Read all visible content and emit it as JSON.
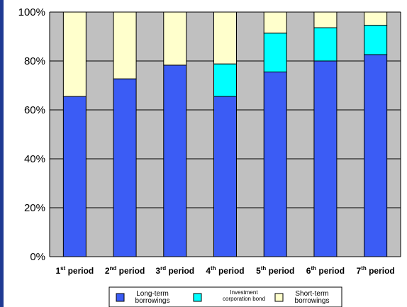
{
  "chart_data": {
    "type": "bar",
    "stacked": true,
    "categories": [
      {
        "num": "1",
        "sup": "st",
        "word": "period"
      },
      {
        "num": "2",
        "sup": "nd",
        "word": "period"
      },
      {
        "num": "3",
        "sup": "rd",
        "word": "period"
      },
      {
        "num": "4",
        "sup": "th",
        "word": "period"
      },
      {
        "num": "5",
        "sup": "th",
        "word": "period"
      },
      {
        "num": "6",
        "sup": "th",
        "word": "period"
      },
      {
        "num": "7",
        "sup": "th",
        "word": "period"
      }
    ],
    "series": [
      {
        "name_lines": [
          "Long-term",
          "borrowings"
        ],
        "color": "#3b5cf5",
        "values": [
          65.5,
          72.7,
          78.3,
          65.5,
          75.5,
          80.0,
          82.6
        ]
      },
      {
        "name_lines": [
          "Investment",
          "corporation bond"
        ],
        "color": "#00ffff",
        "values": [
          0,
          0,
          0,
          13.3,
          15.9,
          13.6,
          12.0
        ]
      },
      {
        "name_lines": [
          "Short-term",
          "borrowings"
        ],
        "color": "#ffffcc",
        "values": [
          34.5,
          27.3,
          21.7,
          21.2,
          8.6,
          6.4,
          5.4
        ]
      }
    ],
    "ylim": [
      0,
      100
    ],
    "yticks": [
      "0%",
      "20%",
      "40%",
      "60%",
      "80%",
      "100%"
    ],
    "grid": true,
    "legend_position": "bottom",
    "plot_background": "#c0c0c0",
    "left_accent_color": "#1f3a93"
  }
}
